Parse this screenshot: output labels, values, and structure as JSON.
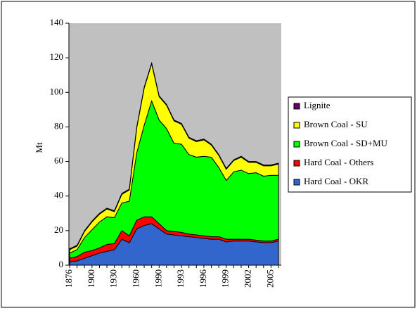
{
  "chart_data": {
    "type": "stacked_area",
    "y_label": "Mt",
    "categories": [
      "1876",
      null,
      null,
      "1900",
      null,
      null,
      "1930",
      null,
      null,
      "1960",
      null,
      null,
      "1990",
      null,
      null,
      "1993",
      null,
      null,
      "1996",
      null,
      null,
      "1999",
      null,
      null,
      "2002",
      null,
      null,
      "2005",
      null
    ],
    "series": [
      {
        "name": "Hard Coal - OKR",
        "color": "#3366cc",
        "values": [
          2,
          2.5,
          4,
          5.5,
          7,
          8,
          9,
          15,
          13,
          21,
          23,
          24,
          21,
          18,
          17.5,
          17,
          16.5,
          16,
          15.5,
          15,
          15,
          13.5,
          14,
          14,
          14,
          13.5,
          13,
          13,
          14
        ]
      },
      {
        "name": "Hard Coal - Others",
        "color": "#ff0000",
        "values": [
          2,
          2.5,
          3.5,
          3,
          3,
          4,
          3.5,
          5,
          4,
          5,
          5,
          4,
          3,
          2,
          2,
          2,
          1.5,
          1.5,
          1.5,
          1.5,
          1.5,
          1.5,
          1,
          1,
          1,
          1,
          1,
          1,
          1
        ]
      },
      {
        "name": "Brown Coal - SD+MU",
        "color": "#00ff00",
        "values": [
          3,
          4,
          8.5,
          12,
          15,
          16,
          15,
          16,
          20,
          39,
          53,
          67,
          60,
          59,
          51,
          51,
          46,
          45,
          46,
          46,
          40,
          34,
          39,
          40,
          38,
          39,
          37.5,
          38,
          37
        ]
      },
      {
        "name": "Brown Coal - SU",
        "color": "#ffff00",
        "values": [
          2,
          2,
          3.5,
          4.5,
          4.5,
          4.5,
          3.5,
          5,
          6.5,
          14.5,
          21.5,
          21.5,
          13.5,
          13.5,
          13,
          11.5,
          9.5,
          9,
          9.5,
          7,
          7,
          6.5,
          6.5,
          7.5,
          6.5,
          6,
          6,
          5.5,
          6.5
        ]
      },
      {
        "name": "Lignite",
        "color": "#660066",
        "values": [
          0.5,
          0.5,
          0.5,
          0.5,
          0.5,
          0.5,
          0.5,
          0.5,
          0.5,
          0.5,
          0.5,
          0.5,
          0.5,
          0.5,
          0.5,
          0.5,
          0.5,
          0.5,
          0.5,
          0.5,
          0.5,
          0.5,
          0.5,
          0.5,
          0.5,
          0.5,
          0.5,
          0.5,
          0.5
        ]
      }
    ],
    "ylim": [
      0,
      140
    ],
    "yticks": [
      0,
      20,
      40,
      60,
      80,
      100,
      120,
      140
    ],
    "grid": false,
    "legend": "right",
    "plot_background": "#c0c0c0"
  }
}
